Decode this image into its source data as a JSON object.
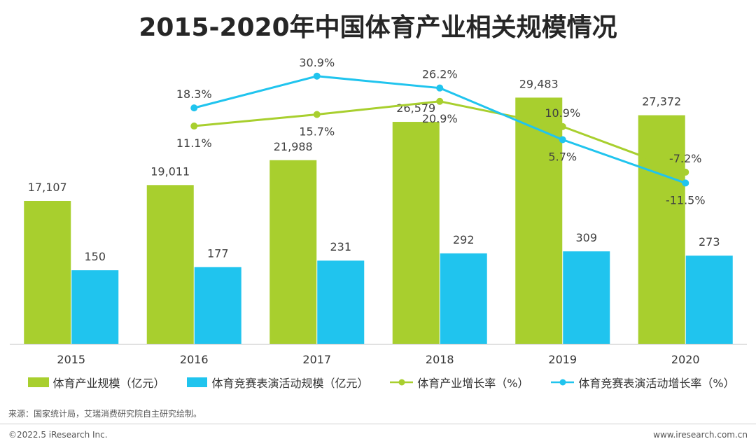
{
  "title": "2015-2020年中国体育产业相关规模情况",
  "chart_data": {
    "type": "bar",
    "categories": [
      "2015",
      "2016",
      "2017",
      "2018",
      "2019",
      "2020"
    ],
    "series": [
      {
        "name": "体育产业规模（亿元）",
        "type": "bar",
        "values": [
          17107,
          19011,
          21988,
          26579,
          29483,
          27372
        ],
        "labels": [
          "17,107",
          "19,011",
          "21,988",
          "26,579",
          "29,483",
          "27,372"
        ],
        "color": "#a8cf2e"
      },
      {
        "name": "体育竞赛表演活动规模（亿元）",
        "type": "bar",
        "values": [
          150,
          177,
          231,
          292,
          309,
          273
        ],
        "labels": [
          "150",
          "177",
          "231",
          "292",
          "309",
          "273"
        ],
        "color": "#20c4ee"
      },
      {
        "name": "体育产业增长率（%）",
        "type": "line",
        "values": [
          null,
          11.1,
          15.7,
          20.9,
          10.9,
          -7.2
        ],
        "labels": [
          "",
          "11.1%",
          "15.7%",
          "20.9%",
          "10.9%",
          "-7.2%"
        ],
        "color": "#a8cf2e"
      },
      {
        "name": "体育竞赛表演活动增长率（%）",
        "type": "line",
        "values": [
          null,
          18.3,
          30.9,
          26.2,
          5.7,
          -11.5
        ],
        "labels": [
          "",
          "18.3%",
          "30.9%",
          "26.2%",
          "5.7%",
          "-11.5%"
        ],
        "color": "#20c4ee"
      }
    ],
    "legend_position": "bottom",
    "grid": false
  },
  "footer": {
    "source": "来源：国家统计局，艾瑞消费研究院自主研究绘制。",
    "copyright": "©2022.5 iResearch Inc.",
    "website": "www.iresearch.com.cn"
  }
}
